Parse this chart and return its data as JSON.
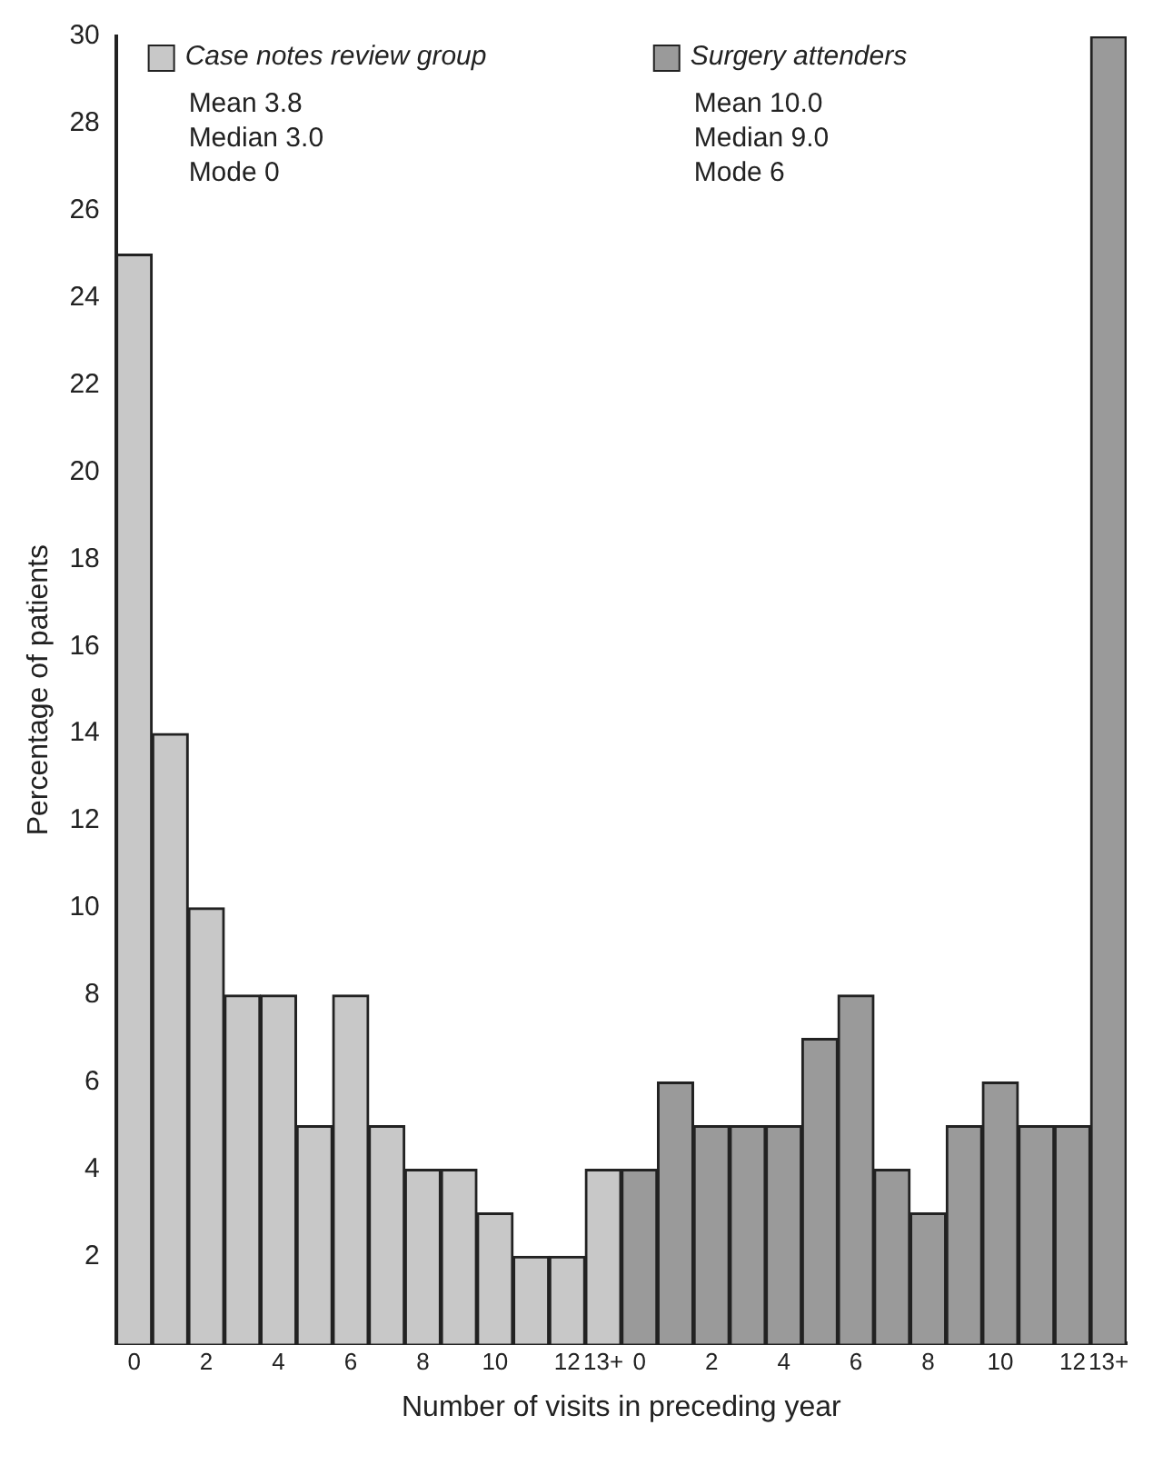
{
  "chart_data": {
    "type": "bar",
    "xlabel": "Number of visits in preceding year",
    "ylabel": "Percentage of patients",
    "categories": [
      "0",
      null,
      "2",
      null,
      "4",
      null,
      "6",
      null,
      "8",
      null,
      "10",
      null,
      "12",
      "13+",
      "0",
      null,
      "2",
      null,
      "4",
      null,
      "6",
      null,
      "8",
      null,
      "10",
      null,
      "12",
      "13+"
    ],
    "series": [
      {
        "name": "Case notes review group",
        "color": "#c8c8c8",
        "values": [
          25,
          14,
          10,
          8,
          8,
          5,
          8,
          5,
          4,
          4,
          3,
          2,
          2,
          4,
          null,
          null,
          null,
          null,
          null,
          null,
          null,
          null,
          null,
          null,
          null,
          null,
          null,
          null
        ]
      },
      {
        "name": "Surgery attenders",
        "color": "#9a9a9a",
        "values": [
          null,
          null,
          null,
          null,
          null,
          null,
          null,
          null,
          null,
          null,
          null,
          null,
          null,
          null,
          4,
          6,
          5,
          5,
          5,
          7,
          8,
          4,
          3,
          5,
          6,
          5,
          5,
          30
        ]
      }
    ],
    "annotations": [
      "Mean 3.8",
      "Median 3.0",
      "Mode 0",
      "Mean 10.0",
      "Median 9.0",
      "Mode 6"
    ],
    "ylim": [
      0,
      30
    ],
    "yticks": [
      2,
      4,
      6,
      8,
      10,
      12,
      14,
      16,
      18,
      20,
      22,
      24,
      26,
      28,
      30
    ],
    "grid": false,
    "legend": "top"
  }
}
